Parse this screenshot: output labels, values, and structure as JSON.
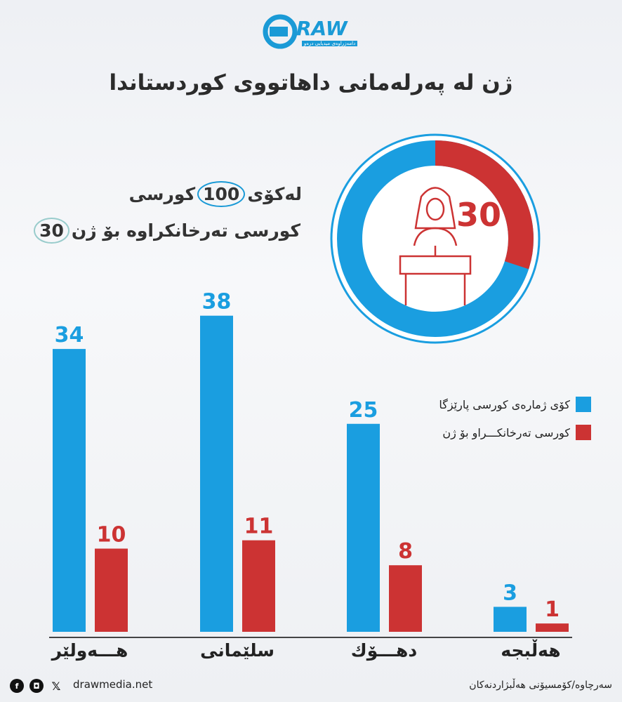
{
  "logo": {
    "text": "DRAW",
    "tagline": "دامەزراوەی میدیایی درەو",
    "colors": {
      "brand": "#1a9ad6"
    }
  },
  "title": "ژن لە پەرلەمانی داهاتووی کوردستاندا",
  "stats": {
    "line1_before": "لەکۆی",
    "line1_number": "100",
    "line1_after": "کورسی",
    "line2_number": "30",
    "line2_text": "کورسی تەرخانکراوە بۆ ژن"
  },
  "donut": {
    "total": 100,
    "women": 30,
    "label": "30",
    "icon": "woman-at-podium-icon"
  },
  "legend": [
    {
      "label": "کۆی ژمارەی کورسی پارێزگا",
      "color": "#1a9ee0"
    },
    {
      "label": "کورسی تەرخانکـــراو بۆ ژن",
      "color": "#cc3333"
    }
  ],
  "chart_data": {
    "type": "bar",
    "categories": [
      "هـــەولێر",
      "سلێمانی",
      "دهـــۆك",
      "هەڵبجە"
    ],
    "series": [
      {
        "name": "کۆی ژمارەی کورسی پارێزگا",
        "values": [
          34,
          38,
          25,
          3
        ],
        "color": "#1a9ee0"
      },
      {
        "name": "کورسی تەرخانکـــراو بۆ ژن",
        "values": [
          10,
          11,
          8,
          1
        ],
        "color": "#cc3333"
      }
    ],
    "ylim": [
      0,
      40
    ]
  },
  "footer": {
    "site": "drawmedia.net",
    "source": "سەرچاوە/کۆمسیۆنی هەڵبژاردنەکان",
    "social": [
      "facebook-icon",
      "instagram-icon",
      "x-icon",
      "tiktok-icon"
    ]
  }
}
